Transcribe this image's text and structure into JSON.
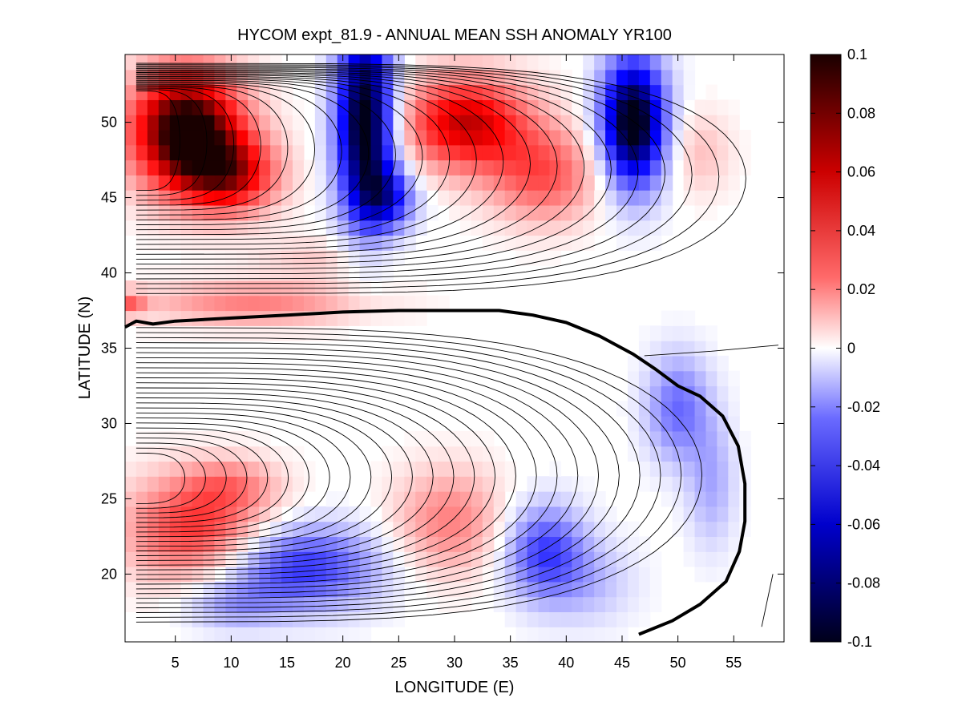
{
  "chart_data": {
    "type": "heatmap",
    "title": "HYCOM expt_81.9 - ANNUAL MEAN SSH ANOMALY YR100",
    "xlabel": "LONGITUDE (E)",
    "ylabel": "LATITUDE (N)",
    "xlim": [
      0.5,
      59.5
    ],
    "ylim": [
      15.5,
      54.5
    ],
    "x_ticks": [
      5,
      10,
      15,
      20,
      25,
      30,
      35,
      40,
      45,
      50,
      55
    ],
    "x_tick_labels": [
      "5",
      "10",
      "15",
      "20",
      "25",
      "30",
      "35",
      "40",
      "45",
      "50",
      "55"
    ],
    "y_ticks": [
      20,
      25,
      30,
      35,
      40,
      45,
      50
    ],
    "y_tick_labels": [
      "20",
      "25",
      "30",
      "35",
      "40",
      "45",
      "50"
    ],
    "colorbar": {
      "clim": [
        -0.1,
        0.1
      ],
      "colormap": "blue-white-red",
      "ticks": [
        0.1,
        0.08,
        0.06,
        0.04,
        0.02,
        0,
        -0.02,
        -0.04,
        -0.06,
        -0.08,
        -0.1
      ],
      "tick_labels": [
        "0.1",
        "0.08",
        "0.06",
        "0.04",
        "0.02",
        "0",
        "-0.02",
        "-0.04",
        "-0.06",
        "-0.08",
        "-0.1"
      ]
    },
    "anomaly_features": [
      {
        "kind": "positive",
        "lon": 6,
        "lat": 49.5,
        "sx": 3.5,
        "sy": 2.8,
        "amp": 0.11
      },
      {
        "kind": "positive",
        "lon": 10,
        "lat": 46.5,
        "sx": 3,
        "sy": 1.8,
        "amp": 0.06
      },
      {
        "kind": "negative",
        "lon": 22,
        "lat": 50,
        "sx": 1.8,
        "sy": 4.5,
        "amp": -0.11
      },
      {
        "kind": "negative",
        "lon": 24,
        "lat": 45,
        "sx": 1.8,
        "sy": 1.5,
        "amp": -0.05
      },
      {
        "kind": "positive",
        "lon": 31,
        "lat": 50,
        "sx": 4,
        "sy": 2.2,
        "amp": 0.07
      },
      {
        "kind": "positive",
        "lon": 38,
        "lat": 46.5,
        "sx": 3.5,
        "sy": 2.2,
        "amp": 0.04
      },
      {
        "kind": "negative",
        "lon": 46,
        "lat": 50,
        "sx": 2,
        "sy": 3,
        "amp": -0.11
      },
      {
        "kind": "positive",
        "lon": 52,
        "lat": 48,
        "sx": 2,
        "sy": 2,
        "amp": 0.015
      },
      {
        "kind": "positive",
        "lon": 12,
        "lat": 38,
        "sx": 7,
        "sy": 1,
        "amp": 0.03
      },
      {
        "kind": "positive",
        "lon": 1,
        "lat": 38,
        "sx": 1,
        "sy": 0.6,
        "amp": 0.03
      },
      {
        "kind": "positive",
        "lon": 18,
        "lat": 41,
        "sx": 4,
        "sy": 1,
        "amp": 0.012
      },
      {
        "kind": "negative",
        "lon": 50,
        "lat": 31,
        "sx": 2,
        "sy": 2.5,
        "amp": -0.035
      },
      {
        "kind": "negative",
        "lon": 53,
        "lat": 26,
        "sx": 1.5,
        "sy": 3,
        "amp": -0.02
      },
      {
        "kind": "positive",
        "lon": 7,
        "lat": 23,
        "sx": 4.5,
        "sy": 2.5,
        "amp": 0.05
      },
      {
        "kind": "positive",
        "lon": 10,
        "lat": 26,
        "sx": 3,
        "sy": 1.2,
        "amp": 0.02
      },
      {
        "kind": "negative",
        "lon": 16,
        "lat": 20.5,
        "sx": 5,
        "sy": 2,
        "amp": -0.05
      },
      {
        "kind": "negative",
        "lon": 10,
        "lat": 18,
        "sx": 3,
        "sy": 1.2,
        "amp": -0.02
      },
      {
        "kind": "positive",
        "lon": 29.5,
        "lat": 23.5,
        "sx": 3.5,
        "sy": 2.5,
        "amp": 0.03
      },
      {
        "kind": "negative",
        "lon": 38,
        "lat": 21.5,
        "sx": 2.5,
        "sy": 2.2,
        "amp": -0.045
      },
      {
        "kind": "negative",
        "lon": 42,
        "lat": 19.5,
        "sx": 3,
        "sy": 2,
        "amp": -0.015
      }
    ],
    "highlighted_contour": {
      "points": [
        [
          0.5,
          36.4
        ],
        [
          1.5,
          36.8
        ],
        [
          3,
          36.6
        ],
        [
          5,
          36.8
        ],
        [
          10,
          37
        ],
        [
          15,
          37.2
        ],
        [
          20,
          37.4
        ],
        [
          25,
          37.5
        ],
        [
          30,
          37.5
        ],
        [
          34,
          37.5
        ],
        [
          37,
          37.2
        ],
        [
          40,
          36.7
        ],
        [
          43,
          35.8
        ],
        [
          46,
          34.6
        ],
        [
          48,
          33.6
        ],
        [
          50,
          32.5
        ],
        [
          52,
          31.8
        ],
        [
          54,
          30.5
        ],
        [
          55.4,
          28.5
        ],
        [
          56,
          26
        ],
        [
          56,
          23.5
        ],
        [
          55.5,
          21.5
        ],
        [
          54.3,
          19.5
        ],
        [
          52,
          18
        ],
        [
          49.5,
          16.9
        ],
        [
          46.5,
          16
        ]
      ]
    }
  }
}
